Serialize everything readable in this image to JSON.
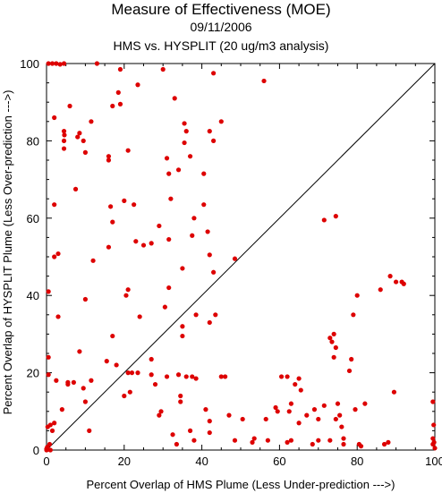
{
  "chart_data": {
    "type": "scatter",
    "title": "Measure of Effectiveness (MOE)",
    "date": "09/11/2006",
    "subtitle": "HMS vs. HYSPLIT  (20 ug/m3 analysis)",
    "xlabel": "Percent Overlap of HMS Plume (Less Under-prediction --->)",
    "ylabel": "Percent Overlap of HYSPLIT Plume (Less Over-prediction --->)",
    "xlim": [
      0,
      100
    ],
    "ylim": [
      0,
      100
    ],
    "x_ticks": [
      "0",
      "20",
      "40",
      "60",
      "80",
      "100"
    ],
    "y_ticks": [
      "0",
      "20",
      "40",
      "60",
      "80",
      "100"
    ],
    "reference_line": "y = x",
    "point_color": "#dd0000",
    "points": [
      [
        0.5,
        100
      ],
      [
        1.5,
        100
      ],
      [
        2.5,
        100
      ],
      [
        3.5,
        99.8
      ],
      [
        4.5,
        100
      ],
      [
        13,
        100
      ],
      [
        2,
        86
      ],
      [
        4.5,
        82.5
      ],
      [
        4.6,
        81.5
      ],
      [
        4.5,
        80
      ],
      [
        4.5,
        78
      ],
      [
        6,
        89
      ],
      [
        8,
        81
      ],
      [
        8.5,
        82
      ],
      [
        10,
        77
      ],
      [
        9.5,
        80
      ],
      [
        11.5,
        85
      ],
      [
        16,
        76
      ],
      [
        16,
        75
      ],
      [
        17,
        89
      ],
      [
        18.5,
        92.5
      ],
      [
        19,
        89.5
      ],
      [
        19,
        98.5
      ],
      [
        23.5,
        94.5
      ],
      [
        30,
        98.5
      ],
      [
        33,
        91
      ],
      [
        35.5,
        84.5
      ],
      [
        36,
        82.5
      ],
      [
        35.5,
        79.5
      ],
      [
        34,
        72.5
      ],
      [
        31,
        75.5
      ],
      [
        31.5,
        71.5
      ],
      [
        42,
        82.5
      ],
      [
        43,
        80
      ],
      [
        43,
        97.5
      ],
      [
        45,
        85
      ],
      [
        56,
        95.5
      ],
      [
        40.5,
        71.5
      ],
      [
        37,
        76
      ],
      [
        7.5,
        67.5
      ],
      [
        2,
        63.5
      ],
      [
        2,
        50
      ],
      [
        3,
        50.8
      ],
      [
        12,
        49
      ],
      [
        16.5,
        63
      ],
      [
        17,
        59
      ],
      [
        20,
        64.5
      ],
      [
        16,
        52.5
      ],
      [
        21,
        77.5
      ],
      [
        22.5,
        63.5
      ],
      [
        23,
        54
      ],
      [
        25,
        53
      ],
      [
        27,
        53.5
      ],
      [
        29,
        58
      ],
      [
        31.5,
        54.5
      ],
      [
        32,
        65
      ],
      [
        35,
        47
      ],
      [
        37.5,
        55.5
      ],
      [
        38,
        60
      ],
      [
        40.5,
        63.5
      ],
      [
        41.5,
        56.5
      ],
      [
        42,
        50.5
      ],
      [
        43,
        46
      ],
      [
        48.5,
        49.5
      ],
      [
        0.5,
        41
      ],
      [
        10,
        39
      ],
      [
        20.5,
        40
      ],
      [
        21,
        41.5
      ],
      [
        24,
        34.5
      ],
      [
        30.5,
        37
      ],
      [
        31.5,
        42
      ],
      [
        35,
        32
      ],
      [
        38.5,
        35
      ],
      [
        42,
        33
      ],
      [
        43.5,
        35
      ],
      [
        71.5,
        59.5
      ],
      [
        74.5,
        60.5
      ],
      [
        79,
        35
      ],
      [
        80,
        40
      ],
      [
        86,
        41.5
      ],
      [
        88.5,
        45
      ],
      [
        90,
        43.5
      ],
      [
        91.5,
        43.5
      ],
      [
        92,
        43
      ],
      [
        3,
        34.5
      ],
      [
        0.5,
        24
      ],
      [
        0.5,
        19.5
      ],
      [
        2.5,
        18
      ],
      [
        5.5,
        17.5
      ],
      [
        7,
        17.5
      ],
      [
        8.5,
        25.5
      ],
      [
        9.5,
        16
      ],
      [
        10,
        12.5
      ],
      [
        11.5,
        18
      ],
      [
        15.5,
        23
      ],
      [
        17,
        29.5
      ],
      [
        18,
        22
      ],
      [
        20,
        14
      ],
      [
        21,
        20
      ],
      [
        22,
        20
      ],
      [
        21.5,
        15
      ],
      [
        23.5,
        20
      ],
      [
        27,
        23.5
      ],
      [
        27,
        19.5
      ],
      [
        28,
        17
      ],
      [
        29,
        9
      ],
      [
        29.5,
        10
      ],
      [
        31,
        19
      ],
      [
        34,
        19.5
      ],
      [
        35,
        29.5
      ],
      [
        34.5,
        14
      ],
      [
        36,
        19
      ],
      [
        37.5,
        19
      ],
      [
        38.5,
        18.5
      ],
      [
        37,
        5
      ],
      [
        38,
        2.5
      ],
      [
        41,
        10.5
      ],
      [
        42,
        7.5
      ],
      [
        42,
        4.5
      ],
      [
        45,
        19
      ],
      [
        50.5,
        8
      ],
      [
        53.5,
        3
      ],
      [
        56.5,
        8
      ],
      [
        59,
        11
      ],
      [
        59.5,
        10
      ],
      [
        60.5,
        19
      ],
      [
        62,
        19
      ],
      [
        62.5,
        10
      ],
      [
        63,
        12
      ],
      [
        64,
        17
      ],
      [
        65,
        18.5
      ],
      [
        65.5,
        15.5
      ],
      [
        67,
        9
      ],
      [
        69,
        10.5
      ],
      [
        70,
        8
      ],
      [
        71.5,
        11.5
      ],
      [
        73,
        29
      ],
      [
        73.5,
        28
      ],
      [
        74,
        30
      ],
      [
        74.5,
        26.5
      ],
      [
        74,
        24
      ],
      [
        75,
        12
      ],
      [
        75.5,
        9
      ],
      [
        76,
        6
      ],
      [
        76.5,
        3
      ],
      [
        78,
        20.5
      ],
      [
        78.5,
        23.5
      ],
      [
        79.5,
        10.5
      ],
      [
        80.5,
        1.5
      ],
      [
        81,
        1
      ],
      [
        82,
        12
      ],
      [
        87,
        1.5
      ],
      [
        88,
        2
      ],
      [
        89.5,
        15
      ],
      [
        1.5,
        5
      ],
      [
        2,
        7
      ],
      [
        4,
        10.5
      ],
      [
        5.5,
        17
      ],
      [
        11,
        5
      ],
      [
        32.5,
        4
      ],
      [
        33.5,
        1.5
      ],
      [
        34.5,
        12.5
      ],
      [
        46,
        19
      ],
      [
        47,
        9
      ],
      [
        48.5,
        2.5
      ],
      [
        53,
        2
      ],
      [
        57,
        2.5
      ],
      [
        62,
        2
      ],
      [
        63,
        2.5
      ],
      [
        65,
        7
      ],
      [
        68.5,
        1.5
      ],
      [
        70,
        2.5
      ],
      [
        73,
        2.5
      ],
      [
        74.5,
        8
      ],
      [
        76.5,
        1.5
      ],
      [
        99.5,
        12.5
      ],
      [
        99.7,
        6.5
      ],
      [
        99.5,
        3
      ],
      [
        99.5,
        1.5
      ],
      [
        100,
        0.5
      ],
      [
        99.8,
        2
      ],
      [
        0,
        0.3
      ],
      [
        0.2,
        0.8
      ],
      [
        0.4,
        0.2
      ],
      [
        1,
        0
      ],
      [
        0.8,
        1.5
      ],
      [
        0.3,
        6
      ],
      [
        1,
        6.5
      ],
      [
        0,
        0
      ]
    ]
  }
}
